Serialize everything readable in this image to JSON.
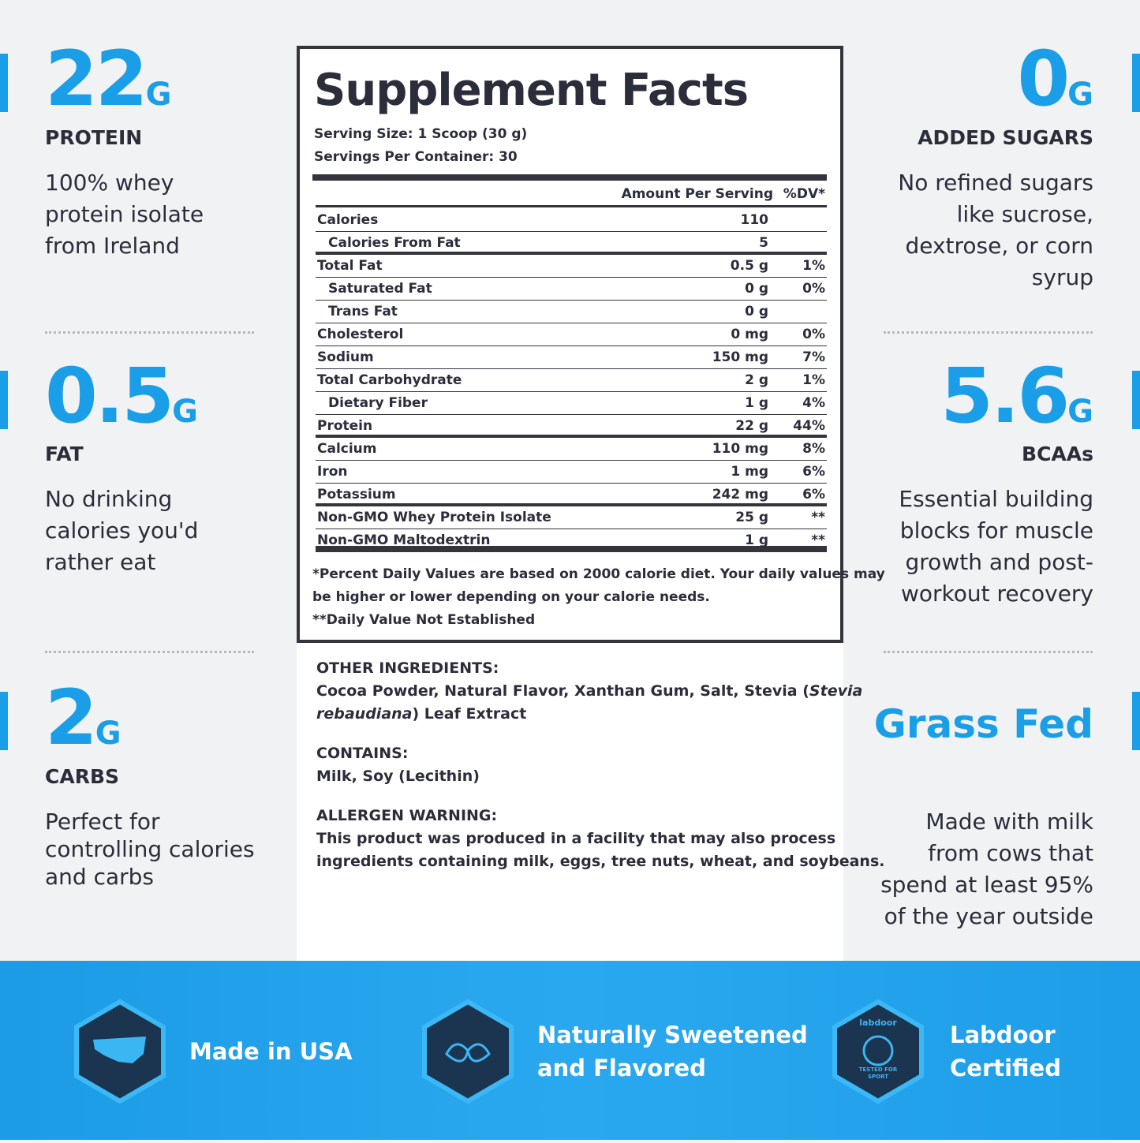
{
  "left_stats": [
    {
      "value": "22",
      "unit": "G",
      "label": "PROTEIN",
      "desc": [
        "100% whey",
        "protein isolate",
        "from Ireland"
      ]
    },
    {
      "value": "0.5",
      "unit": "G",
      "label": "FAT",
      "desc": [
        "No drinking",
        "calories you'd",
        "rather eat"
      ]
    },
    {
      "value": "2",
      "unit": "G",
      "label": "CARBS",
      "desc": [
        "Perfect for",
        "controlling calories",
        "and carbs"
      ]
    }
  ],
  "right_stats": [
    {
      "value": "0",
      "unit": "G",
      "label": "ADDED SUGARS",
      "desc": [
        "No refined sugars",
        "like sucrose,",
        "dextrose, or corn",
        "syrup"
      ]
    },
    {
      "value": "5.6",
      "unit": "G",
      "label": "BCAAs",
      "desc": [
        "Essential building",
        "blocks for muscle",
        "growth and post-",
        "workout recovery"
      ]
    },
    {
      "value": "Grass Fed",
      "desc": [
        "Made with milk",
        "from cows that",
        "spend at least 95%",
        "of the year outside"
      ]
    }
  ],
  "facts": {
    "title": "Supplement Facts",
    "serving_size": "Serving Size: 1 Scoop (30 g)",
    "servings": "Servings Per Container: 30",
    "header": [
      "Amount Per Serving",
      "%DV*"
    ],
    "sections": [
      [
        {
          "name": "Calories",
          "amount": "110",
          "dv": ""
        },
        {
          "name": "Calories From Fat",
          "amount": "5",
          "dv": "",
          "indent": true
        }
      ],
      [
        {
          "name": "Total Fat",
          "amount": "0.5 g",
          "dv": "1%"
        },
        {
          "name": "Saturated Fat",
          "amount": "0 g",
          "dv": "0%",
          "indent": true
        },
        {
          "name": "Trans Fat",
          "amount": "0 g",
          "dv": "",
          "indent": true
        },
        {
          "name": "Cholesterol",
          "amount": "0 mg",
          "dv": "0%"
        },
        {
          "name": "Sodium",
          "amount": "150 mg",
          "dv": "7%"
        },
        {
          "name": "Total Carbohydrate",
          "amount": "2 g",
          "dv": "1%"
        },
        {
          "name": "Dietary Fiber",
          "amount": "1 g",
          "dv": "4%",
          "indent": true
        },
        {
          "name": "Protein",
          "amount": "22 g",
          "dv": "44%"
        }
      ],
      [
        {
          "name": "Calcium",
          "amount": "110 mg",
          "dv": "8%"
        },
        {
          "name": "Iron",
          "amount": "1 mg",
          "dv": "6%"
        },
        {
          "name": "Potassium",
          "amount": "242 mg",
          "dv": "6%"
        }
      ],
      [
        {
          "name": "Non-GMO Whey Protein Isolate",
          "amount": "25 g",
          "dv": "**"
        },
        {
          "name": "Non-GMO Maltodextrin",
          "amount": "1 g",
          "dv": "**"
        }
      ]
    ],
    "footnotes": [
      "*Percent Daily Values are based on 2000 calorie diet. Your daily values may",
      "be higher or lower depending on your calorie needs.",
      "**Daily Value Not Established"
    ]
  },
  "ingredients": [
    {
      "heading": "OTHER INGREDIENTS:",
      "lines": [
        [
          {
            "text": "Cocoa Powder, Natural Flavor, Xanthan Gum, Salt, Stevia ("
          },
          {
            "text": "Stevia",
            "italic": true
          }
        ],
        [
          {
            "text": "rebaudiana",
            "italic": true
          },
          {
            "text": ") Leaf Extract"
          }
        ]
      ]
    },
    {
      "heading": "CONTAINS:",
      "lines": [
        [
          {
            "text": "Milk, Soy (Lecithin)"
          }
        ]
      ]
    },
    {
      "heading": "ALLERGEN WARNING:",
      "lines": [
        [
          {
            "text": "This product was produced in a facility that may also process"
          }
        ],
        [
          {
            "text": "ingredients containing milk, eggs, tree nuts, wheat, and soybeans."
          }
        ]
      ]
    }
  ],
  "badges": [
    {
      "lines": [
        "Made in USA"
      ]
    },
    {
      "lines": [
        "Naturally Sweetened",
        "and Flavored"
      ]
    },
    {
      "lines": [
        "Labdoor",
        "Certified"
      ],
      "icon_text": [
        "labdoor",
        "TESTED FOR",
        "SPORT"
      ]
    }
  ]
}
